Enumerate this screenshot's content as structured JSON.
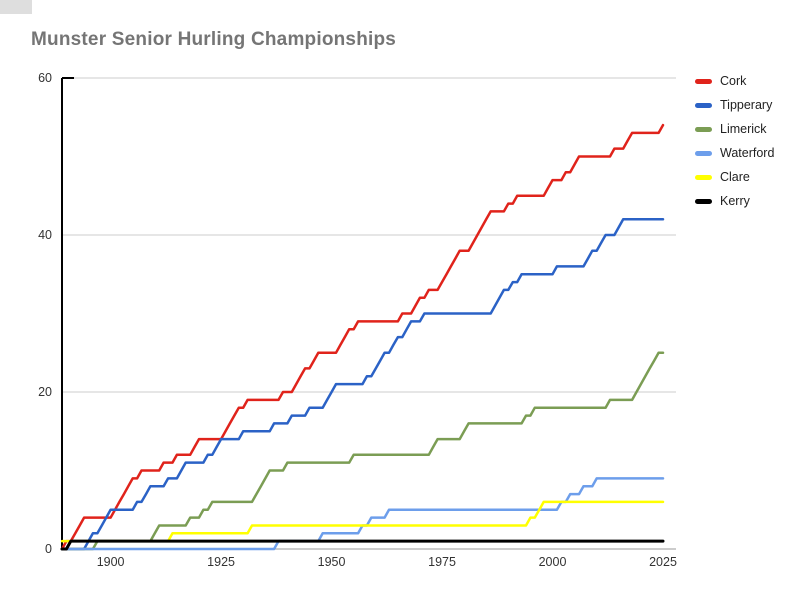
{
  "title": "Munster Senior Hurling Championships",
  "chart_data": {
    "type": "line",
    "subtype": "cumulative-titles-by-year",
    "title": "Munster Senior Hurling Championships",
    "x_domain": [
      1889,
      2025
    ],
    "x_ticks": [
      1900,
      1925,
      1950,
      1975,
      2000,
      2025
    ],
    "y_domain": [
      0,
      60
    ],
    "y_ticks": [
      0,
      20,
      40,
      60
    ],
    "grid": true,
    "legend_position": "right",
    "series": [
      {
        "name": "Cork",
        "color": "#e0231b",
        "final_total": 54,
        "win_years": [
          1890,
          1892,
          1893,
          1894,
          1901,
          1902,
          1903,
          1904,
          1905,
          1907,
          1912,
          1915,
          1919,
          1920,
          1926,
          1927,
          1928,
          1929,
          1931,
          1939,
          1942,
          1943,
          1944,
          1946,
          1947,
          1952,
          1953,
          1954,
          1956,
          1966,
          1969,
          1970,
          1972,
          1975,
          1976,
          1977,
          1978,
          1979,
          1982,
          1983,
          1984,
          1985,
          1986,
          1990,
          1992,
          1999,
          2000,
          2003,
          2005,
          2006,
          2014,
          2017,
          2018,
          2025
        ]
      },
      {
        "name": "Tipperary",
        "color": "#2b62c6",
        "final_total": 42,
        "win_years": [
          1895,
          1896,
          1898,
          1899,
          1900,
          1906,
          1908,
          1909,
          1913,
          1916,
          1917,
          1922,
          1924,
          1925,
          1930,
          1937,
          1941,
          1945,
          1949,
          1950,
          1951,
          1958,
          1960,
          1961,
          1962,
          1964,
          1965,
          1967,
          1968,
          1971,
          1987,
          1988,
          1989,
          1991,
          1993,
          2001,
          2008,
          2009,
          2011,
          2012,
          2015,
          2016
        ]
      },
      {
        "name": "Limerick",
        "color": "#7b9d54",
        "final_total": 25,
        "win_years": [
          1897,
          1910,
          1911,
          1918,
          1921,
          1923,
          1933,
          1934,
          1935,
          1936,
          1940,
          1955,
          1973,
          1974,
          1980,
          1981,
          1994,
          1996,
          2013,
          2019,
          2020,
          2021,
          2022,
          2023,
          2024
        ]
      },
      {
        "name": "Waterford",
        "color": "#6d9eeb",
        "final_total": 9,
        "win_years": [
          1938,
          1948,
          1957,
          1959,
          1963,
          2002,
          2004,
          2007,
          2010
        ]
      },
      {
        "name": "Clare",
        "color": "#ffff00",
        "final_total": 6,
        "win_years": [
          1889,
          1914,
          1932,
          1995,
          1997,
          1998
        ]
      },
      {
        "name": "Kerry",
        "color": "#000000",
        "final_total": 1,
        "win_years": [
          1891
        ]
      }
    ]
  },
  "colors": {
    "background": "#ffffff",
    "title": "#757575",
    "tick_label": "#333333",
    "gridline": "#cccccc",
    "baseline": "#9a9a9a",
    "axis": "#000000"
  }
}
